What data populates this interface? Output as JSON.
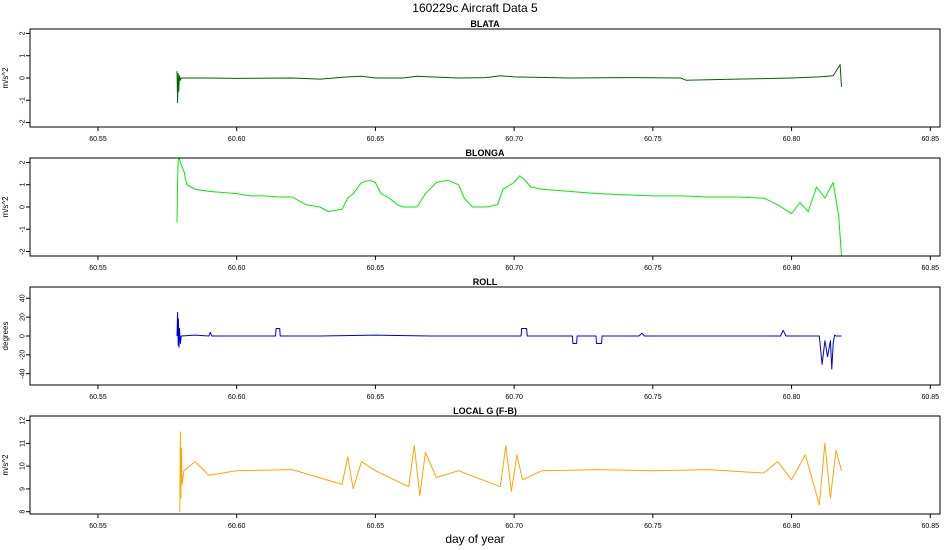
{
  "chart_data": {
    "title": "160229c   Aircraft Data 5",
    "xlabel": "day of year",
    "x_ticks": [
      "60.55",
      "60.60",
      "60.65",
      "60.70",
      "60.75",
      "60.80",
      "60.85"
    ],
    "x_tick_values": [
      60.55,
      60.6,
      60.65,
      60.7,
      60.75,
      60.8,
      60.85
    ],
    "xlim": [
      60.5255,
      60.8535
    ],
    "panels": [
      {
        "type": "line",
        "title": "BLATA",
        "ylabel": "m/s^2",
        "ylim": [
          -2.2,
          2.2
        ],
        "y_ticks": [
          "-2",
          "-1",
          "0",
          "1",
          "2"
        ],
        "y_tick_values": [
          -2,
          -1,
          0,
          1,
          2
        ],
        "color": "#006400",
        "series": [
          {
            "x": [
              60.5785,
              60.5787,
              60.5789,
              60.5791,
              60.5794,
              60.5797,
              60.58,
              60.59,
              60.6,
              60.62,
              60.63,
              60.64,
              60.645,
              60.65,
              60.66,
              60.665,
              60.67,
              60.68,
              60.69,
              60.695,
              60.7,
              60.72,
              60.74,
              60.76,
              60.762,
              60.78,
              60.8,
              60.81,
              60.815,
              60.8175,
              60.818
            ],
            "y": [
              0.3,
              -1.1,
              0.2,
              -0.6,
              0.1,
              -0.1,
              0.0,
              0.0,
              -0.02,
              0.0,
              -0.05,
              0.05,
              0.08,
              0.0,
              0.0,
              0.08,
              0.05,
              0.0,
              0.02,
              0.1,
              0.05,
              0.0,
              0.02,
              0.0,
              -0.1,
              -0.05,
              0.0,
              0.05,
              0.1,
              0.6,
              -0.4
            ]
          }
        ]
      },
      {
        "type": "line",
        "title": "BLONGA",
        "ylabel": "m/s^2",
        "ylim": [
          -2.2,
          2.2
        ],
        "y_ticks": [
          "-2",
          "-1",
          "0",
          "1",
          "2"
        ],
        "y_tick_values": [
          -2,
          -1,
          0,
          1,
          2
        ],
        "color": "#00ee00",
        "series": [
          {
            "x": [
              60.5785,
              60.5787,
              60.5789,
              60.5792,
              60.58,
              60.581,
              60.582,
              60.585,
              60.59,
              60.595,
              60.6,
              60.605,
              60.61,
              60.615,
              60.62,
              60.625,
              60.63,
              60.633,
              60.638,
              60.64,
              60.642,
              60.645,
              60.648,
              60.65,
              60.652,
              60.655,
              60.658,
              60.66,
              60.663,
              60.665,
              60.668,
              60.672,
              60.676,
              60.68,
              60.682,
              60.685,
              60.69,
              60.694,
              60.696,
              60.7,
              60.702,
              60.704,
              60.706,
              60.71,
              60.72,
              60.73,
              60.74,
              60.75,
              60.76,
              60.77,
              60.78,
              60.79,
              60.795,
              60.8,
              60.803,
              60.806,
              60.809,
              60.812,
              60.815,
              60.817,
              60.818
            ],
            "y": [
              -0.7,
              1.2,
              2.1,
              2.2,
              1.9,
              1.6,
              1.0,
              0.8,
              0.7,
              0.65,
              0.6,
              0.5,
              0.5,
              0.45,
              0.45,
              0.1,
              0.0,
              -0.2,
              -0.1,
              0.4,
              0.6,
              1.1,
              1.2,
              1.1,
              0.6,
              0.4,
              0.1,
              0.0,
              0.0,
              0.0,
              0.6,
              1.1,
              1.2,
              1.0,
              0.4,
              0.0,
              0.0,
              0.1,
              0.8,
              1.1,
              1.4,
              1.2,
              0.9,
              0.8,
              0.7,
              0.6,
              0.55,
              0.5,
              0.5,
              0.45,
              0.45,
              0.4,
              0.1,
              -0.3,
              0.2,
              -0.2,
              0.9,
              0.4,
              1.1,
              -0.4,
              -2.2
            ]
          }
        ]
      },
      {
        "type": "line",
        "title": "ROLL",
        "ylabel": "degrees",
        "ylim": [
          -52,
          52
        ],
        "y_ticks": [
          "-40",
          "-20",
          "0",
          "20",
          "40"
        ],
        "y_tick_values": [
          -40,
          -20,
          0,
          20,
          40
        ],
        "color": "#0000dd",
        "series": [
          {
            "x": [
              60.5785,
              60.5787,
              60.5789,
              60.579,
              60.5792,
              60.5794,
              60.5797,
              60.58,
              60.585,
              60.59,
              60.5905,
              60.591,
              60.6,
              60.614,
              60.6142,
              60.6155,
              60.6157,
              60.63,
              60.65,
              60.67,
              60.68,
              60.7,
              60.7025,
              60.7027,
              60.7045,
              60.7047,
              60.71,
              60.721,
              60.7212,
              60.7225,
              60.7227,
              60.7295,
              60.7297,
              60.7315,
              60.7317,
              60.745,
              60.746,
              60.747,
              60.76,
              60.78,
              60.796,
              60.797,
              60.798,
              60.8,
              60.81,
              60.811,
              60.812,
              60.813,
              60.814,
              60.8145,
              60.815,
              60.8155,
              60.816,
              60.818
            ],
            "y": [
              0,
              25,
              -10,
              18,
              -12,
              8,
              -8,
              0,
              1,
              0,
              4,
              0,
              0,
              0,
              8,
              8,
              0,
              0,
              1,
              0,
              0,
              0,
              0,
              8,
              8,
              0,
              0,
              0,
              -8,
              -8,
              0,
              0,
              -8,
              -8,
              0,
              0,
              3,
              0,
              0,
              0,
              0,
              6,
              0,
              0,
              0,
              -30,
              -5,
              -22,
              -5,
              -35,
              -8,
              1,
              0,
              0
            ]
          }
        ]
      },
      {
        "type": "line",
        "title": "LOCAL G (F-B)",
        "ylabel": "m/s^2",
        "ylim": [
          7.9,
          12.2
        ],
        "y_ticks": [
          "8",
          "9",
          "10",
          "11",
          "12"
        ],
        "y_tick_values": [
          8,
          9,
          10,
          11,
          12
        ],
        "color": "#ffa500",
        "series": [
          {
            "x": [
              60.5795,
              60.5797,
              60.5799,
              60.5801,
              60.5803,
              60.581,
              60.585,
              60.59,
              60.6,
              60.62,
              60.638,
              60.64,
              60.642,
              60.645,
              60.65,
              60.662,
              60.664,
              60.666,
              60.668,
              60.672,
              60.68,
              60.695,
              60.697,
              60.699,
              60.701,
              60.703,
              60.71,
              60.73,
              60.75,
              60.77,
              60.79,
              60.795,
              60.8,
              60.805,
              60.81,
              60.812,
              60.814,
              60.816,
              60.818
            ],
            "y": [
              8.0,
              11.5,
              8.6,
              10.8,
              9.2,
              9.8,
              10.2,
              9.6,
              9.8,
              9.85,
              9.2,
              10.4,
              9.0,
              10.2,
              9.8,
              9.1,
              10.9,
              8.7,
              10.6,
              9.5,
              9.8,
              9.1,
              10.9,
              8.9,
              10.5,
              9.4,
              9.8,
              9.85,
              9.8,
              9.85,
              9.7,
              10.2,
              9.4,
              10.5,
              8.3,
              11.0,
              8.6,
              10.7,
              9.8
            ]
          }
        ]
      }
    ]
  }
}
